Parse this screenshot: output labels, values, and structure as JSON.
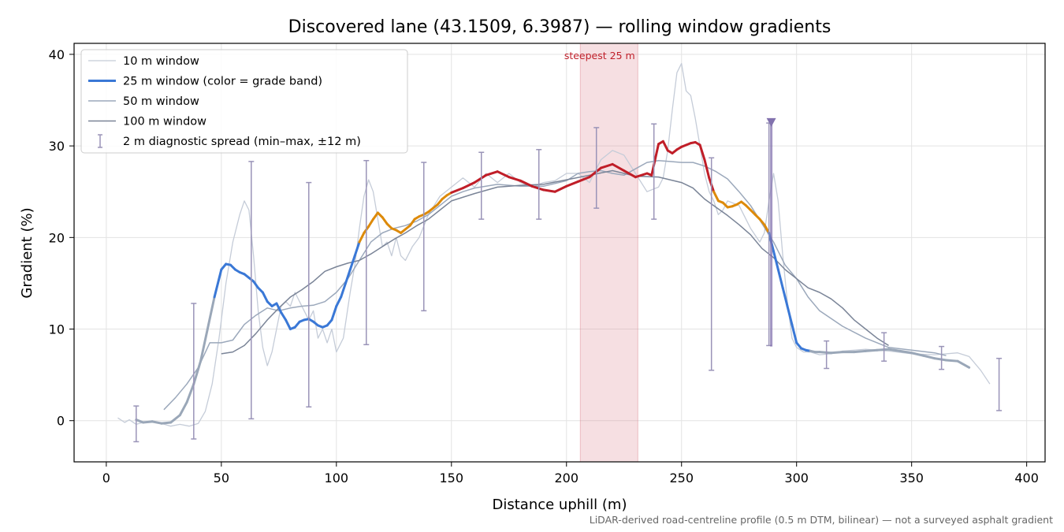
{
  "chart_data": {
    "type": "line",
    "title": "Discovered lane (43.1509, 6.3987) — rolling window gradients",
    "xlabel": "Distance uphill (m)",
    "ylabel": "Gradient (%)",
    "footnote": "LiDAR-derived road-centreline profile (0.5 m DTM, bilinear) — not a surveyed asphalt gradient",
    "xlim": [
      -14,
      408
    ],
    "ylim": [
      -4.5,
      41.2
    ],
    "xticks": [
      0,
      50,
      100,
      150,
      200,
      250,
      300,
      350,
      400
    ],
    "yticks": [
      0,
      10,
      20,
      30,
      40
    ],
    "grid": true,
    "legend_position": "top-left",
    "steepest_band": {
      "x": [
        206,
        231
      ],
      "label": "steepest 25 m",
      "color": "#dc7f8a"
    },
    "grade_band_colors": {
      "low": "#3a78d6",
      "mid": "#dd8a0a",
      "high": "#c01e28",
      "flat": "#9aa7b8"
    },
    "series": [
      {
        "name": "10 m window",
        "color": "#c5ccd8",
        "width": 1.3,
        "x": [
          5,
          8,
          10,
          13,
          16,
          20,
          24,
          28,
          32,
          36,
          40,
          43,
          46,
          49,
          52,
          55,
          58,
          60,
          62,
          64,
          66,
          68,
          70,
          72,
          74,
          76,
          78,
          80,
          82,
          84,
          86,
          88,
          90,
          92,
          94,
          96,
          98,
          100,
          103,
          106,
          108,
          110,
          112,
          114,
          116,
          118,
          120,
          122,
          124,
          126,
          128,
          130,
          133,
          136,
          140,
          145,
          150,
          155,
          160,
          165,
          170,
          175,
          180,
          185,
          190,
          195,
          200,
          205,
          210,
          215,
          220,
          225,
          230,
          235,
          240,
          242,
          244,
          246,
          248,
          250,
          252,
          254,
          256,
          258,
          260,
          262,
          264,
          266,
          268,
          270,
          275,
          280,
          284,
          286,
          288,
          290,
          292,
          294,
          296,
          298,
          300,
          303,
          306,
          310,
          315,
          320,
          330,
          340,
          350,
          360,
          370,
          375,
          380,
          384
        ],
        "values": [
          0.3,
          -0.2,
          0.1,
          -0.4,
          -0.2,
          0.0,
          -0.3,
          -0.6,
          -0.4,
          -0.6,
          -0.3,
          1.0,
          4.0,
          9.0,
          15.0,
          19.5,
          22.5,
          24.0,
          23.0,
          18.0,
          12.0,
          8.0,
          6.0,
          7.5,
          10.0,
          12.5,
          13.0,
          12.5,
          14.0,
          13.0,
          12.0,
          11.0,
          12.0,
          9.0,
          10.0,
          8.5,
          10.0,
          7.5,
          9.0,
          14.0,
          17.0,
          21.0,
          24.5,
          26.3,
          25.0,
          22.0,
          19.0,
          19.5,
          18.0,
          20.0,
          18.0,
          17.5,
          19.0,
          20.0,
          22.5,
          24.5,
          25.5,
          26.5,
          25.5,
          27.0,
          26.0,
          27.0,
          26.0,
          25.5,
          26.0,
          26.2,
          27.0,
          27.0,
          26.0,
          28.5,
          29.5,
          29.0,
          27.0,
          25.0,
          25.5,
          26.5,
          29.5,
          34.0,
          38.0,
          39.0,
          36.0,
          35.5,
          33.0,
          30.0,
          27.0,
          25.0,
          24.0,
          22.5,
          23.0,
          24.0,
          23.5,
          21.0,
          19.5,
          20.5,
          24.0,
          27.0,
          24.0,
          18.0,
          13.0,
          9.0,
          8.0,
          7.5,
          7.5,
          7.2,
          7.3,
          7.6,
          7.8,
          7.6,
          7.3,
          7.2,
          7.4,
          7.0,
          5.5,
          4.0
        ]
      },
      {
        "name": "25 m window (color = grade band)",
        "color": "#3a78d6",
        "width": 3,
        "grade_colored": true,
        "x": [
          13,
          16,
          20,
          24,
          28,
          32,
          35,
          38,
          41,
          44,
          47,
          50,
          52,
          54,
          56,
          58,
          60,
          62,
          64,
          66,
          68,
          70,
          72,
          74,
          76,
          78,
          80,
          82,
          84,
          86,
          88,
          90,
          92,
          94,
          96,
          98,
          100,
          102,
          104,
          106,
          108,
          110,
          112,
          114,
          116,
          118,
          120,
          122,
          124,
          126,
          128,
          130,
          132,
          134,
          136,
          138,
          140,
          142,
          144,
          146,
          148,
          150,
          155,
          160,
          165,
          170,
          175,
          180,
          185,
          190,
          195,
          200,
          205,
          210,
          215,
          220,
          225,
          230,
          235,
          237,
          240,
          242,
          244,
          246,
          248,
          250,
          252,
          254,
          256,
          258,
          260,
          262,
          264,
          266,
          268,
          270,
          272,
          274,
          276,
          278,
          280,
          282,
          284,
          286,
          288,
          290,
          292,
          294,
          296,
          298,
          300,
          302,
          304,
          306,
          308,
          310,
          315,
          320,
          325,
          330,
          335,
          340,
          345,
          350,
          355,
          360,
          365,
          370,
          375
        ],
        "values": [
          0.1,
          -0.2,
          -0.1,
          -0.3,
          -0.2,
          0.6,
          2.0,
          4.0,
          6.5,
          10.0,
          13.5,
          16.5,
          17.1,
          17.0,
          16.5,
          16.2,
          16.0,
          15.6,
          15.2,
          14.5,
          14.0,
          13.0,
          12.5,
          12.8,
          11.8,
          11.0,
          10.0,
          10.2,
          10.8,
          11.0,
          11.1,
          10.8,
          10.4,
          10.2,
          10.4,
          11.0,
          12.5,
          13.5,
          15.0,
          16.5,
          18.0,
          19.5,
          20.5,
          21.2,
          22.0,
          22.7,
          22.2,
          21.5,
          21.0,
          20.8,
          20.5,
          20.9,
          21.3,
          22.0,
          22.3,
          22.5,
          22.8,
          23.2,
          23.6,
          24.2,
          24.6,
          24.9,
          25.4,
          26.0,
          26.8,
          27.2,
          26.6,
          26.2,
          25.6,
          25.2,
          25.0,
          25.6,
          26.1,
          26.6,
          27.6,
          28.0,
          27.3,
          26.6,
          27.0,
          26.8,
          30.2,
          30.5,
          29.5,
          29.2,
          29.6,
          29.9,
          30.1,
          30.3,
          30.4,
          30.1,
          28.5,
          26.5,
          25.0,
          24.0,
          23.8,
          23.3,
          23.4,
          23.6,
          23.9,
          23.5,
          23.0,
          22.5,
          22.0,
          21.4,
          20.5,
          18.5,
          16.5,
          14.5,
          12.5,
          10.5,
          8.5,
          7.9,
          7.7,
          7.6,
          7.5,
          7.5,
          7.4,
          7.5,
          7.5,
          7.6,
          7.7,
          7.8,
          7.6,
          7.4,
          7.1,
          6.8,
          6.6,
          6.5,
          5.8
        ]
      },
      {
        "name": "50 m window",
        "color": "#9ba8bb",
        "width": 1.5,
        "x": [
          25,
          30,
          35,
          40,
          45,
          50,
          55,
          60,
          65,
          70,
          75,
          80,
          85,
          90,
          95,
          100,
          105,
          110,
          115,
          120,
          125,
          130,
          135,
          140,
          145,
          150,
          155,
          160,
          170,
          180,
          190,
          200,
          205,
          210,
          215,
          220,
          225,
          230,
          235,
          240,
          245,
          250,
          255,
          260,
          265,
          270,
          275,
          280,
          285,
          290,
          295,
          300,
          305,
          310,
          320,
          330,
          340,
          350,
          360,
          365
        ],
        "values": [
          1.2,
          2.5,
          4.0,
          5.8,
          8.5,
          8.5,
          8.8,
          10.5,
          11.5,
          12.3,
          12.0,
          12.3,
          12.5,
          12.6,
          13.0,
          14.0,
          15.5,
          17.5,
          19.5,
          20.5,
          21.0,
          21.3,
          21.8,
          22.5,
          23.5,
          24.5,
          25.0,
          25.4,
          25.8,
          25.6,
          25.6,
          26.2,
          27.0,
          27.2,
          27.3,
          27.0,
          26.8,
          27.5,
          28.2,
          28.4,
          28.3,
          28.2,
          28.2,
          27.8,
          27.2,
          26.4,
          25.0,
          23.5,
          21.5,
          19.5,
          17.0,
          15.5,
          13.5,
          12.0,
          10.3,
          9.0,
          8.0,
          7.7,
          7.4,
          7.1
        ]
      },
      {
        "name": "100 m window",
        "color": "#7a8497",
        "width": 1.5,
        "x": [
          50,
          55,
          60,
          65,
          70,
          75,
          80,
          85,
          90,
          95,
          100,
          105,
          110,
          115,
          120,
          125,
          130,
          135,
          140,
          145,
          150,
          160,
          170,
          180,
          190,
          200,
          210,
          220,
          230,
          240,
          245,
          250,
          255,
          260,
          265,
          270,
          275,
          280,
          285,
          290,
          295,
          300,
          305,
          310,
          315,
          320,
          325,
          330,
          335,
          340
        ],
        "values": [
          7.3,
          7.5,
          8.2,
          9.5,
          11.0,
          12.3,
          13.5,
          14.3,
          15.2,
          16.3,
          16.8,
          17.2,
          17.5,
          18.2,
          19.0,
          19.8,
          20.5,
          21.3,
          22.0,
          23.0,
          24.0,
          24.8,
          25.5,
          25.7,
          25.8,
          26.3,
          26.8,
          27.3,
          26.7,
          26.6,
          26.3,
          26.0,
          25.4,
          24.2,
          23.3,
          22.4,
          21.4,
          20.3,
          18.8,
          17.8,
          16.5,
          15.5,
          14.5,
          14.0,
          13.3,
          12.3,
          11.0,
          10.0,
          9.0,
          8.2
        ]
      }
    ],
    "errorbars": {
      "name": "2 m diagnostic spread (min–max, ±12 m)",
      "color": "#9a94b8",
      "x": [
        13,
        38,
        63,
        88,
        113,
        138,
        163,
        188,
        213,
        238,
        263,
        288,
        313,
        338,
        363,
        388
      ],
      "min": [
        -2.3,
        -2.0,
        0.2,
        1.5,
        8.3,
        12.0,
        22.0,
        22.0,
        23.2,
        22.0,
        5.5,
        8.2,
        5.7,
        6.5,
        5.6,
        1.1
      ],
      "max": [
        1.6,
        12.8,
        28.3,
        26.0,
        28.4,
        28.2,
        29.3,
        29.6,
        32.0,
        32.4,
        28.7,
        32.5,
        8.7,
        9.6,
        8.1,
        6.8
      ]
    },
    "marker": {
      "x": 289,
      "y": 32.6,
      "shape": "triangle-down",
      "color": "#8272ae"
    }
  }
}
